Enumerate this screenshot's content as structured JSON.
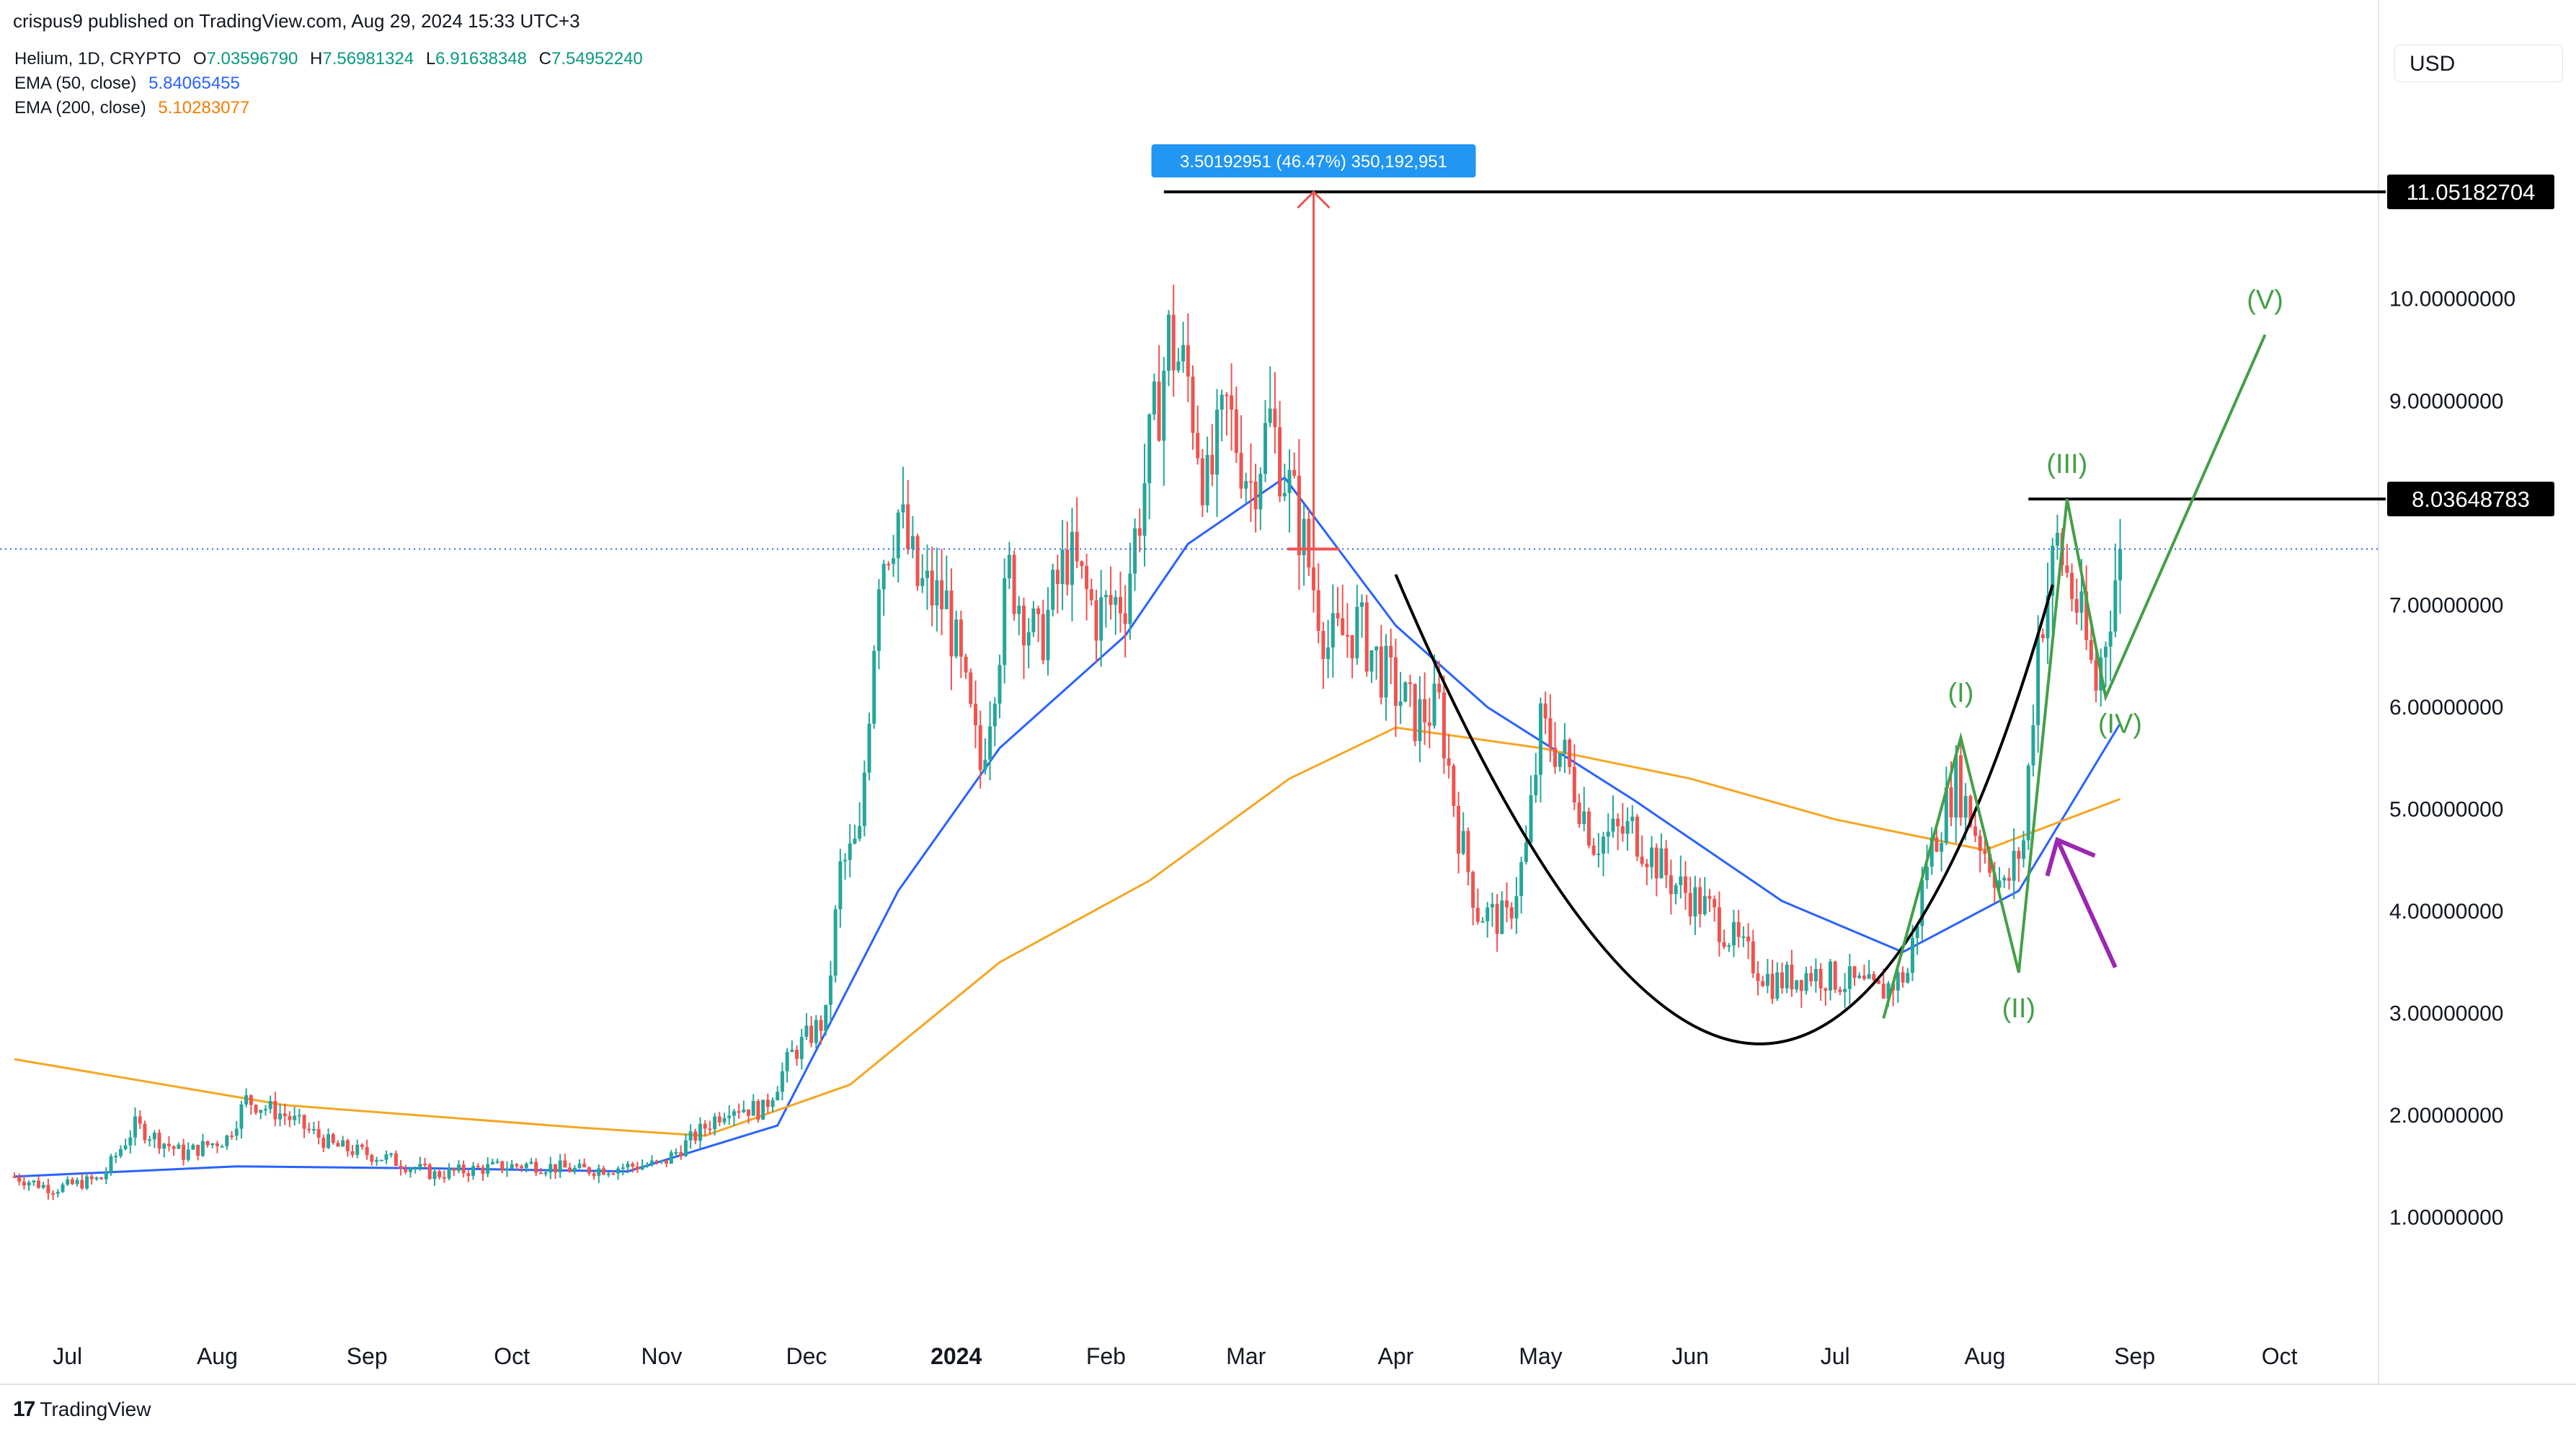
{
  "header": {
    "published_by": "crispus9 published on TradingView.com, Aug 29, 2024 15:33 UTC+3"
  },
  "legend": {
    "symbol": "Helium, 1D, CRYPTO",
    "ohlc": {
      "o_label": "O",
      "o_value": "7.03596790",
      "h_label": "H",
      "h_value": "7.56981324",
      "l_label": "L",
      "l_value": "6.91638348",
      "c_label": "C",
      "c_value": "7.54952240"
    },
    "ema50": {
      "label": "EMA (50, close)",
      "value": "5.84065455",
      "color": "#2962ff"
    },
    "ema200": {
      "label": "EMA (200, close)",
      "value": "5.10283077",
      "color": "#f5a623"
    }
  },
  "currency": "USD",
  "footer": {
    "brand": "TradingView"
  },
  "colors": {
    "up": "#26a69a",
    "down": "#ef5350",
    "blue": "#2962ff",
    "orange": "#f5a623",
    "wave": "#43a047",
    "purple": "#9c27b0",
    "measure": "#ef5350",
    "tooltip": "#2196f3"
  },
  "chart_data": {
    "type": "candlestick",
    "title": "Helium, 1D, CRYPTO",
    "y_ticks": [
      "1.00000000",
      "2.00000000",
      "3.00000000",
      "4.00000000",
      "5.00000000",
      "6.00000000",
      "7.00000000",
      "9.00000000",
      "10.00000000"
    ],
    "y_tick_values": [
      1,
      2,
      3,
      4,
      5,
      6,
      7,
      9,
      10
    ],
    "ylim": [
      0.0,
      11.8
    ],
    "x_ticks": [
      "Jul",
      "Aug",
      "Sep",
      "Oct",
      "Nov",
      "Dec",
      "2024",
      "Feb",
      "Mar",
      "Apr",
      "May",
      "Jun",
      "Jul",
      "Aug",
      "Sep",
      "Oct"
    ],
    "x_tick_dates": [
      "2023-07-01",
      "2023-08-01",
      "2023-09-01",
      "2023-10-01",
      "2023-11-01",
      "2023-12-01",
      "2024-01-01",
      "2024-02-01",
      "2024-03-01",
      "2024-04-01",
      "2024-05-01",
      "2024-06-01",
      "2024-07-01",
      "2024-08-01",
      "2024-09-01",
      "2024-10-01"
    ],
    "xlim": [
      "2023-06-20",
      "2024-10-20"
    ],
    "price_path": [
      [
        "2023-06-20",
        1.4
      ],
      [
        "2023-06-28",
        1.28
      ],
      [
        "2023-07-08",
        1.38
      ],
      [
        "2023-07-15",
        1.9
      ],
      [
        "2023-07-25",
        1.62
      ],
      [
        "2023-08-03",
        1.78
      ],
      [
        "2023-08-07",
        2.15
      ],
      [
        "2023-08-15",
        2.0
      ],
      [
        "2023-08-25",
        1.7
      ],
      [
        "2023-09-05",
        1.58
      ],
      [
        "2023-09-15",
        1.42
      ],
      [
        "2023-09-25",
        1.48
      ],
      [
        "2023-10-05",
        1.52
      ],
      [
        "2023-10-15",
        1.46
      ],
      [
        "2023-10-25",
        1.5
      ],
      [
        "2023-11-01",
        1.52
      ],
      [
        "2023-11-08",
        1.8
      ],
      [
        "2023-11-15",
        2.1
      ],
      [
        "2023-11-22",
        2.05
      ],
      [
        "2023-11-28",
        2.6
      ],
      [
        "2023-12-05",
        2.95
      ],
      [
        "2023-12-08",
        4.4
      ],
      [
        "2023-12-12",
        4.7
      ],
      [
        "2023-12-16",
        7.4
      ],
      [
        "2023-12-20",
        7.9
      ],
      [
        "2023-12-24",
        7.2
      ],
      [
        "2023-12-30",
        7.0
      ],
      [
        "2024-01-06",
        5.4
      ],
      [
        "2024-01-12",
        7.3
      ],
      [
        "2024-01-18",
        6.6
      ],
      [
        "2024-01-24",
        7.5
      ],
      [
        "2024-01-30",
        6.9
      ],
      [
        "2024-02-05",
        7.1
      ],
      [
        "2024-02-10",
        8.5
      ],
      [
        "2024-02-14",
        9.6
      ],
      [
        "2024-02-18",
        9.2
      ],
      [
        "2024-02-22",
        8.1
      ],
      [
        "2024-02-26",
        8.9
      ],
      [
        "2024-03-02",
        8.2
      ],
      [
        "2024-03-06",
        8.8
      ],
      [
        "2024-03-12",
        7.8
      ],
      [
        "2024-03-18",
        6.6
      ],
      [
        "2024-03-24",
        6.8
      ],
      [
        "2024-03-30",
        6.3
      ],
      [
        "2024-04-05",
        5.9
      ],
      [
        "2024-04-10",
        6.0
      ],
      [
        "2024-04-14",
        4.8
      ],
      [
        "2024-04-18",
        4.0
      ],
      [
        "2024-04-24",
        3.9
      ],
      [
        "2024-04-28",
        4.6
      ],
      [
        "2024-05-01",
        5.8
      ],
      [
        "2024-05-06",
        5.5
      ],
      [
        "2024-05-12",
        4.7
      ],
      [
        "2024-05-20",
        4.8
      ],
      [
        "2024-05-28",
        4.3
      ],
      [
        "2024-06-05",
        4.0
      ],
      [
        "2024-06-12",
        3.6
      ],
      [
        "2024-06-18",
        3.3
      ],
      [
        "2024-06-26",
        3.4
      ],
      [
        "2024-07-04",
        3.3
      ],
      [
        "2024-07-10",
        3.2
      ],
      [
        "2024-07-16",
        3.4
      ],
      [
        "2024-07-20",
        4.5
      ],
      [
        "2024-07-26",
        5.3
      ],
      [
        "2024-07-30",
        4.8
      ],
      [
        "2024-08-05",
        4.2
      ],
      [
        "2024-08-09",
        4.7
      ],
      [
        "2024-08-12",
        6.7
      ],
      [
        "2024-08-16",
        7.6
      ],
      [
        "2024-08-20",
        7.0
      ],
      [
        "2024-08-24",
        6.2
      ],
      [
        "2024-08-29",
        7.55
      ]
    ],
    "series": [
      {
        "name": "EMA (50, close)",
        "color": "#2962ff",
        "points": [
          [
            "2023-06-20",
            1.4
          ],
          [
            "2023-08-05",
            1.5
          ],
          [
            "2023-09-15",
            1.48
          ],
          [
            "2023-10-25",
            1.45
          ],
          [
            "2023-11-25",
            1.9
          ],
          [
            "2023-12-20",
            4.2
          ],
          [
            "2024-01-10",
            5.6
          ],
          [
            "2024-02-05",
            6.7
          ],
          [
            "2024-02-18",
            7.6
          ],
          [
            "2024-03-09",
            8.25
          ],
          [
            "2024-04-01",
            6.8
          ],
          [
            "2024-04-20",
            6.0
          ],
          [
            "2024-05-20",
            5.1
          ],
          [
            "2024-06-20",
            4.1
          ],
          [
            "2024-07-15",
            3.6
          ],
          [
            "2024-08-08",
            4.2
          ],
          [
            "2024-08-29",
            5.84
          ]
        ]
      },
      {
        "name": "EMA (200, close)",
        "color": "#f5a623",
        "points": [
          [
            "2023-06-20",
            2.55
          ],
          [
            "2023-08-15",
            2.1
          ],
          [
            "2023-10-15",
            1.88
          ],
          [
            "2023-11-10",
            1.8
          ],
          [
            "2023-12-10",
            2.3
          ],
          [
            "2024-01-10",
            3.5
          ],
          [
            "2024-02-10",
            4.3
          ],
          [
            "2024-03-10",
            5.3
          ],
          [
            "2024-04-01",
            5.8
          ],
          [
            "2024-05-01",
            5.6
          ],
          [
            "2024-06-01",
            5.3
          ],
          [
            "2024-07-01",
            4.9
          ],
          [
            "2024-08-01",
            4.6
          ],
          [
            "2024-08-29",
            5.1
          ]
        ]
      }
    ],
    "current_price_line": 7.55,
    "horizontal_levels": [
      {
        "label": "11.05182704",
        "value": 11.05,
        "from": "2024-02-13"
      },
      {
        "label": "8.03648783",
        "value": 8.04,
        "from": "2024-08-10"
      }
    ],
    "measure": {
      "label": "3.50192951 (46.47%) 350,192,951",
      "date": "2024-03-15",
      "from_value": 7.55,
      "to_value": 11.05
    },
    "elliott_wave": {
      "labels": [
        "(I)",
        "(II)",
        "(III)",
        "(IV)",
        "(V)"
      ],
      "points": [
        [
          "2024-07-11",
          2.95
        ],
        [
          "2024-07-27",
          5.7
        ],
        [
          "2024-08-08",
          3.4
        ],
        [
          "2024-08-18",
          8.04
        ],
        [
          "2024-08-26",
          6.1
        ],
        [
          "2024-09-28",
          9.65
        ]
      ]
    },
    "cup_curve": {
      "points": [
        [
          "2024-04-01",
          7.3
        ],
        [
          "2024-06-15",
          2.7
        ],
        [
          "2024-08-15",
          7.2
        ]
      ]
    },
    "arrow": {
      "from": [
        "2024-08-28",
        3.45
      ],
      "to": [
        "2024-08-16",
        4.7
      ]
    },
    "grid": false,
    "legend_position": "top-left"
  }
}
